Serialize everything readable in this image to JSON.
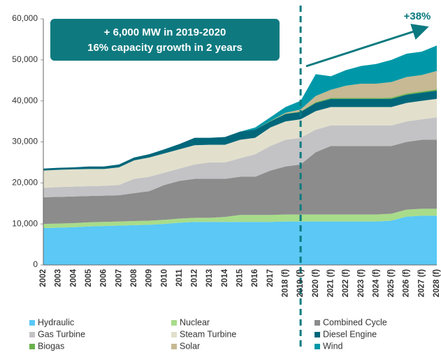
{
  "chart_data": {
    "type": "stacked_area",
    "categories": [
      "2002",
      "2003",
      "2004",
      "2005",
      "2006",
      "2007",
      "2008",
      "2009",
      "2010",
      "2011",
      "2012",
      "2013",
      "2014",
      "2015",
      "2016",
      "2017",
      "2018 (f)",
      "2019 (f)",
      "2020 (f)",
      "2021 (f)",
      "2022 (f)",
      "2023 (f)",
      "2024 (f)",
      "2025 (f)",
      "2026 (f)",
      "2027 (f)",
      "2028 (f)"
    ],
    "series": [
      {
        "name": "Hydraulic",
        "color": "#5bc8f5",
        "values": [
          9000,
          9100,
          9200,
          9400,
          9500,
          9600,
          9700,
          9800,
          10000,
          10300,
          10500,
          10500,
          10500,
          10500,
          10500,
          10500,
          10600,
          10600,
          10600,
          10600,
          10600,
          10600,
          10600,
          10800,
          11800,
          12000,
          12000
        ]
      },
      {
        "name": "Nuclear",
        "color": "#a8dc8a",
        "values": [
          1000,
          1000,
          1000,
          1000,
          1000,
          1000,
          1000,
          1000,
          1000,
          1000,
          1000,
          1000,
          1200,
          1700,
          1700,
          1700,
          1700,
          1700,
          1700,
          1700,
          1700,
          1700,
          1700,
          1700,
          1700,
          1700,
          1700
        ]
      },
      {
        "name": "Combined Cycle",
        "color": "#8c8c8c",
        "values": [
          6500,
          6500,
          6500,
          6400,
          6400,
          6400,
          6800,
          7200,
          8500,
          9200,
          9500,
          9500,
          9300,
          9300,
          9300,
          10800,
          11700,
          12200,
          15200,
          16700,
          16700,
          16700,
          16700,
          16500,
          16500,
          16800,
          16800
        ]
      },
      {
        "name": "Gas Turbine",
        "color": "#c3c3c6",
        "values": [
          2300,
          2400,
          2400,
          2400,
          2400,
          2500,
          3500,
          3500,
          3000,
          3000,
          3500,
          4000,
          4000,
          4500,
          5500,
          6000,
          6500,
          6500,
          5500,
          5000,
          5000,
          5000,
          5000,
          5000,
          5000,
          5000,
          5500
        ]
      },
      {
        "name": "Steam Turbine",
        "color": "#e2e0cc",
        "values": [
          4200,
          4200,
          4200,
          4200,
          4100,
          4300,
          4500,
          4700,
          4700,
          4700,
          4700,
          4300,
          4300,
          4500,
          4000,
          4500,
          4500,
          4500,
          4500,
          4500,
          4500,
          4500,
          4500,
          4500,
          4500,
          4500,
          4500
        ]
      },
      {
        "name": "Diesel Engine",
        "color": "#00677a",
        "values": [
          500,
          500,
          500,
          600,
          600,
          700,
          700,
          800,
          1000,
          1300,
          1800,
          1700,
          1900,
          2000,
          2000,
          1500,
          1800,
          1800,
          2000,
          2000,
          2000,
          2000,
          2000,
          2000,
          2000,
          2000,
          2000
        ]
      },
      {
        "name": "Biogas",
        "color": "#6ab04c",
        "values": [
          0,
          0,
          0,
          0,
          0,
          0,
          0,
          0,
          0,
          0,
          0,
          0,
          0,
          0,
          0,
          100,
          100,
          100,
          200,
          200,
          200,
          200,
          200,
          300,
          300,
          300,
          300
        ]
      },
      {
        "name": "Solar",
        "color": "#c6b993",
        "values": [
          0,
          0,
          0,
          0,
          0,
          0,
          0,
          0,
          0,
          0,
          0,
          0,
          0,
          0,
          0,
          0,
          200,
          500,
          1500,
          2000,
          3000,
          3500,
          3500,
          3800,
          4000,
          4000,
          4500
        ]
      },
      {
        "name": "Wind",
        "color": "#0098a8",
        "values": [
          0,
          0,
          0,
          0,
          0,
          0,
          0,
          0,
          0,
          0,
          0,
          0,
          0,
          0,
          500,
          900,
          1400,
          2100,
          5300,
          3300,
          3800,
          4300,
          4800,
          5400,
          5700,
          5700,
          6200
        ]
      }
    ],
    "ylim": [
      0,
      60000
    ],
    "yticks": [
      0,
      {
        "value": 10000,
        "label": "10,000"
      },
      {
        "value": 20000,
        "label": "20,000"
      },
      {
        "value": 30000,
        "label": "30,000"
      },
      {
        "value": 40000,
        "label": "40,000"
      },
      {
        "value": 50000,
        "label": "50,000"
      },
      {
        "value": 60000,
        "label": "60,000"
      }
    ],
    "annotations": [
      "+ 6,000 MW in 2019-2020",
      "16% capacity growth in 2 years",
      "+38%"
    ],
    "legend": "bottom"
  }
}
